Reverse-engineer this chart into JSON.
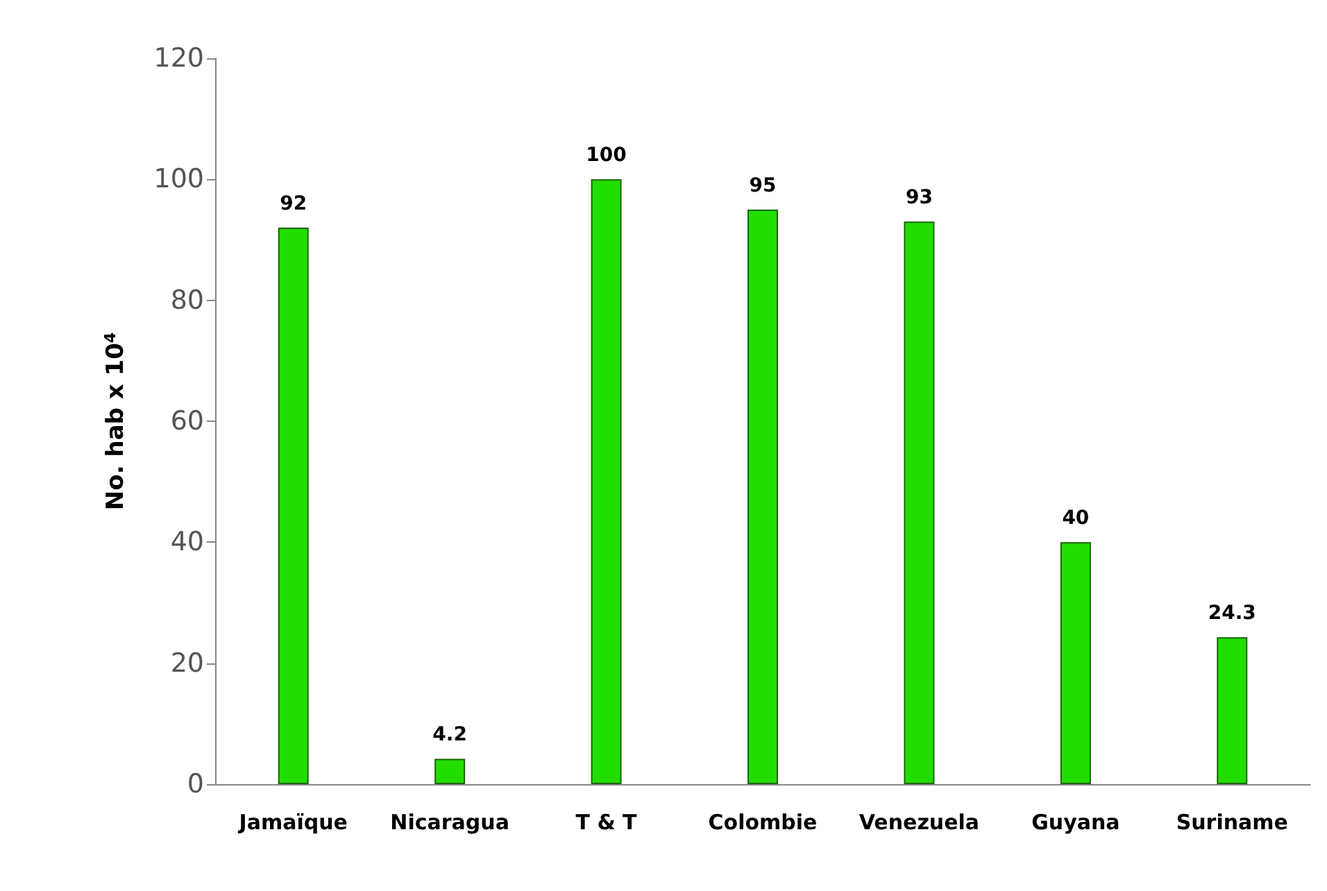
{
  "chart_data": {
    "type": "bar",
    "ylabel": "No. hab x 10$^{4}$",
    "categories": [
      "Jamaïque",
      "Nicaragua",
      "T & T",
      "Colombie",
      "Venezuela",
      "Guyana",
      "Suriname"
    ],
    "values": [
      92,
      4.2,
      100,
      95,
      93,
      40,
      24.3
    ],
    "color": "#22dd00",
    "ylim": [
      0,
      120
    ],
    "yticks": [
      0,
      20,
      40,
      60,
      80,
      100,
      120
    ],
    "grid": false,
    "data_labels": true
  }
}
